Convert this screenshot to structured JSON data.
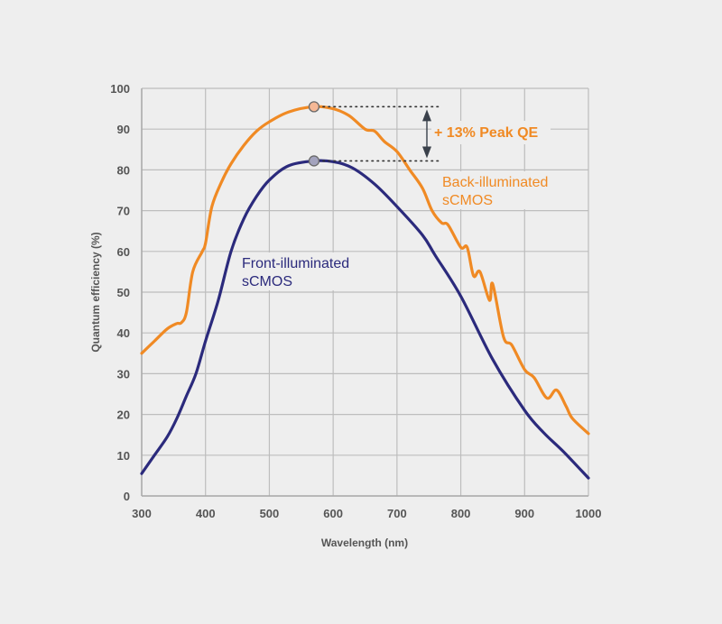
{
  "chart_data": {
    "type": "line",
    "title": "",
    "xlabel": "Wavelength (nm)",
    "ylabel": "Quantum efficiency (%)",
    "xlim": [
      300,
      1000
    ],
    "ylim": [
      0,
      100
    ],
    "xticks": [
      300,
      400,
      500,
      600,
      700,
      800,
      900,
      1000
    ],
    "yticks": [
      0,
      10,
      20,
      30,
      40,
      50,
      60,
      70,
      80,
      90,
      100
    ],
    "grid": true,
    "series": [
      {
        "name": "Back-illuminated sCMOS",
        "label_lines": [
          "Back-illuminated",
          "sCMOS"
        ],
        "color": "#f08a24",
        "x": [
          300,
          320,
          340,
          355,
          362,
          370,
          380,
          395,
          400,
          410,
          425,
          440,
          460,
          480,
          500,
          530,
          570,
          600,
          625,
          650,
          665,
          680,
          700,
          720,
          740,
          755,
          770,
          780,
          800,
          810,
          820,
          830,
          845,
          850,
          867,
          880,
          900,
          915,
          935,
          950,
          965,
          975,
          1000
        ],
        "y": [
          35,
          38,
          41,
          42.3,
          42.5,
          45,
          55,
          60,
          62,
          71,
          77,
          81.5,
          86,
          89.5,
          91.8,
          94.2,
          95.5,
          95,
          93.3,
          90,
          89.5,
          87,
          84.5,
          80,
          75.5,
          70,
          67,
          66.5,
          61,
          61,
          54,
          55,
          48,
          52,
          39,
          37,
          31,
          29,
          24,
          26,
          22,
          19,
          15.3
        ]
      },
      {
        "name": "Front-illuminated sCMOS",
        "label_lines": [
          "Front-illuminated",
          "sCMOS"
        ],
        "color": "#2b2a7c",
        "x": [
          300,
          320,
          340,
          355,
          370,
          385,
          400,
          420,
          440,
          460,
          480,
          500,
          530,
          570,
          600,
          630,
          665,
          700,
          740,
          760,
          800,
          850,
          900,
          930,
          960,
          1000
        ],
        "y": [
          5.5,
          10,
          14.5,
          19,
          24.5,
          30,
          38,
          48,
          60,
          68,
          73.5,
          77.5,
          81,
          82.2,
          82,
          80.5,
          76.5,
          71,
          64,
          59,
          49,
          33.5,
          21,
          15.5,
          11,
          4.4
        ]
      }
    ],
    "peak_markers": [
      {
        "series": "Back-illuminated sCMOS",
        "x": 570,
        "y": 95.5,
        "fill": "#f5b896"
      },
      {
        "series": "Front-illuminated sCMOS",
        "x": 570,
        "y": 82.2,
        "fill": "#a3a3bd"
      }
    ],
    "annotations": [
      {
        "text": "+ 13% Peak QE",
        "from": 82.2,
        "to": 95.5,
        "color": "#f08a24"
      }
    ]
  }
}
